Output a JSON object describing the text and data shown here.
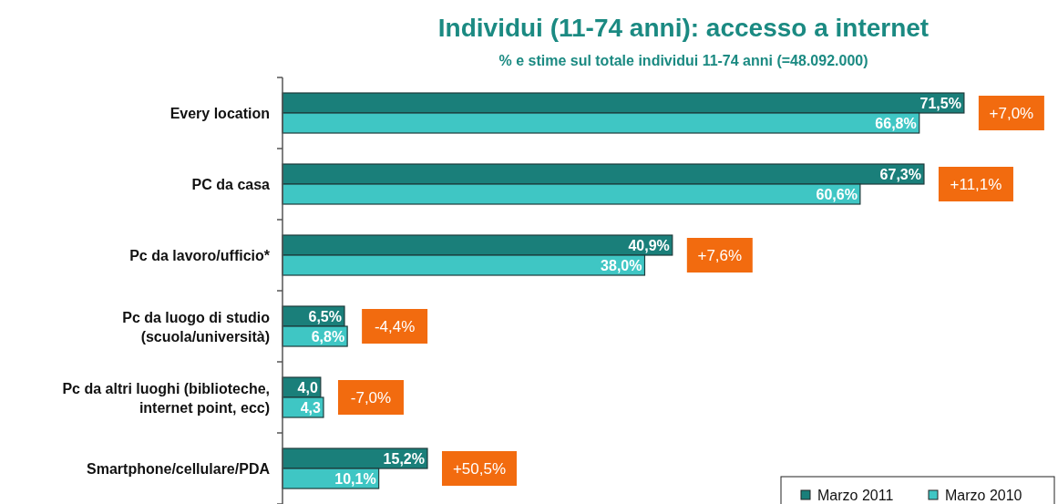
{
  "chart_data": {
    "type": "bar",
    "orientation": "horizontal",
    "title": "Individui  (11-74 anni): accesso a internet",
    "subtitle": "% e stime sul totale individui  11-74 anni (=48.092.000)",
    "categories": [
      "Every location",
      "PC da casa",
      "Pc da lavoro/ufficio*",
      "Pc da luogo di studio\n(scuola/università)",
      "Pc da altri luoghi (biblioteche,\ninternet point, ecc)",
      "Smartphone/cellulare/PDA"
    ],
    "series": [
      {
        "name": "Marzo 2011",
        "color": "#1a7f7a",
        "values": [
          71.5,
          67.3,
          40.9,
          6.5,
          4.0,
          15.2
        ],
        "value_labels": [
          "71,5%",
          "67,3%",
          "40,9%",
          "6,5%",
          "4,0",
          "15,2%"
        ]
      },
      {
        "name": "Marzo 2010",
        "color": "#3fc6c4",
        "values": [
          66.8,
          60.6,
          38.0,
          6.8,
          4.3,
          10.1
        ],
        "value_labels": [
          "66,8%",
          "60,6%",
          "38,0%",
          "6,8%",
          "4,3",
          "10,1%"
        ]
      }
    ],
    "annotations": [
      "+7,0%",
      "+11,1%",
      "+7,6%",
      "-4,4%",
      "-7,0%",
      "+50,5%"
    ],
    "tick_labels": "y",
    "legend": "bottom right"
  }
}
